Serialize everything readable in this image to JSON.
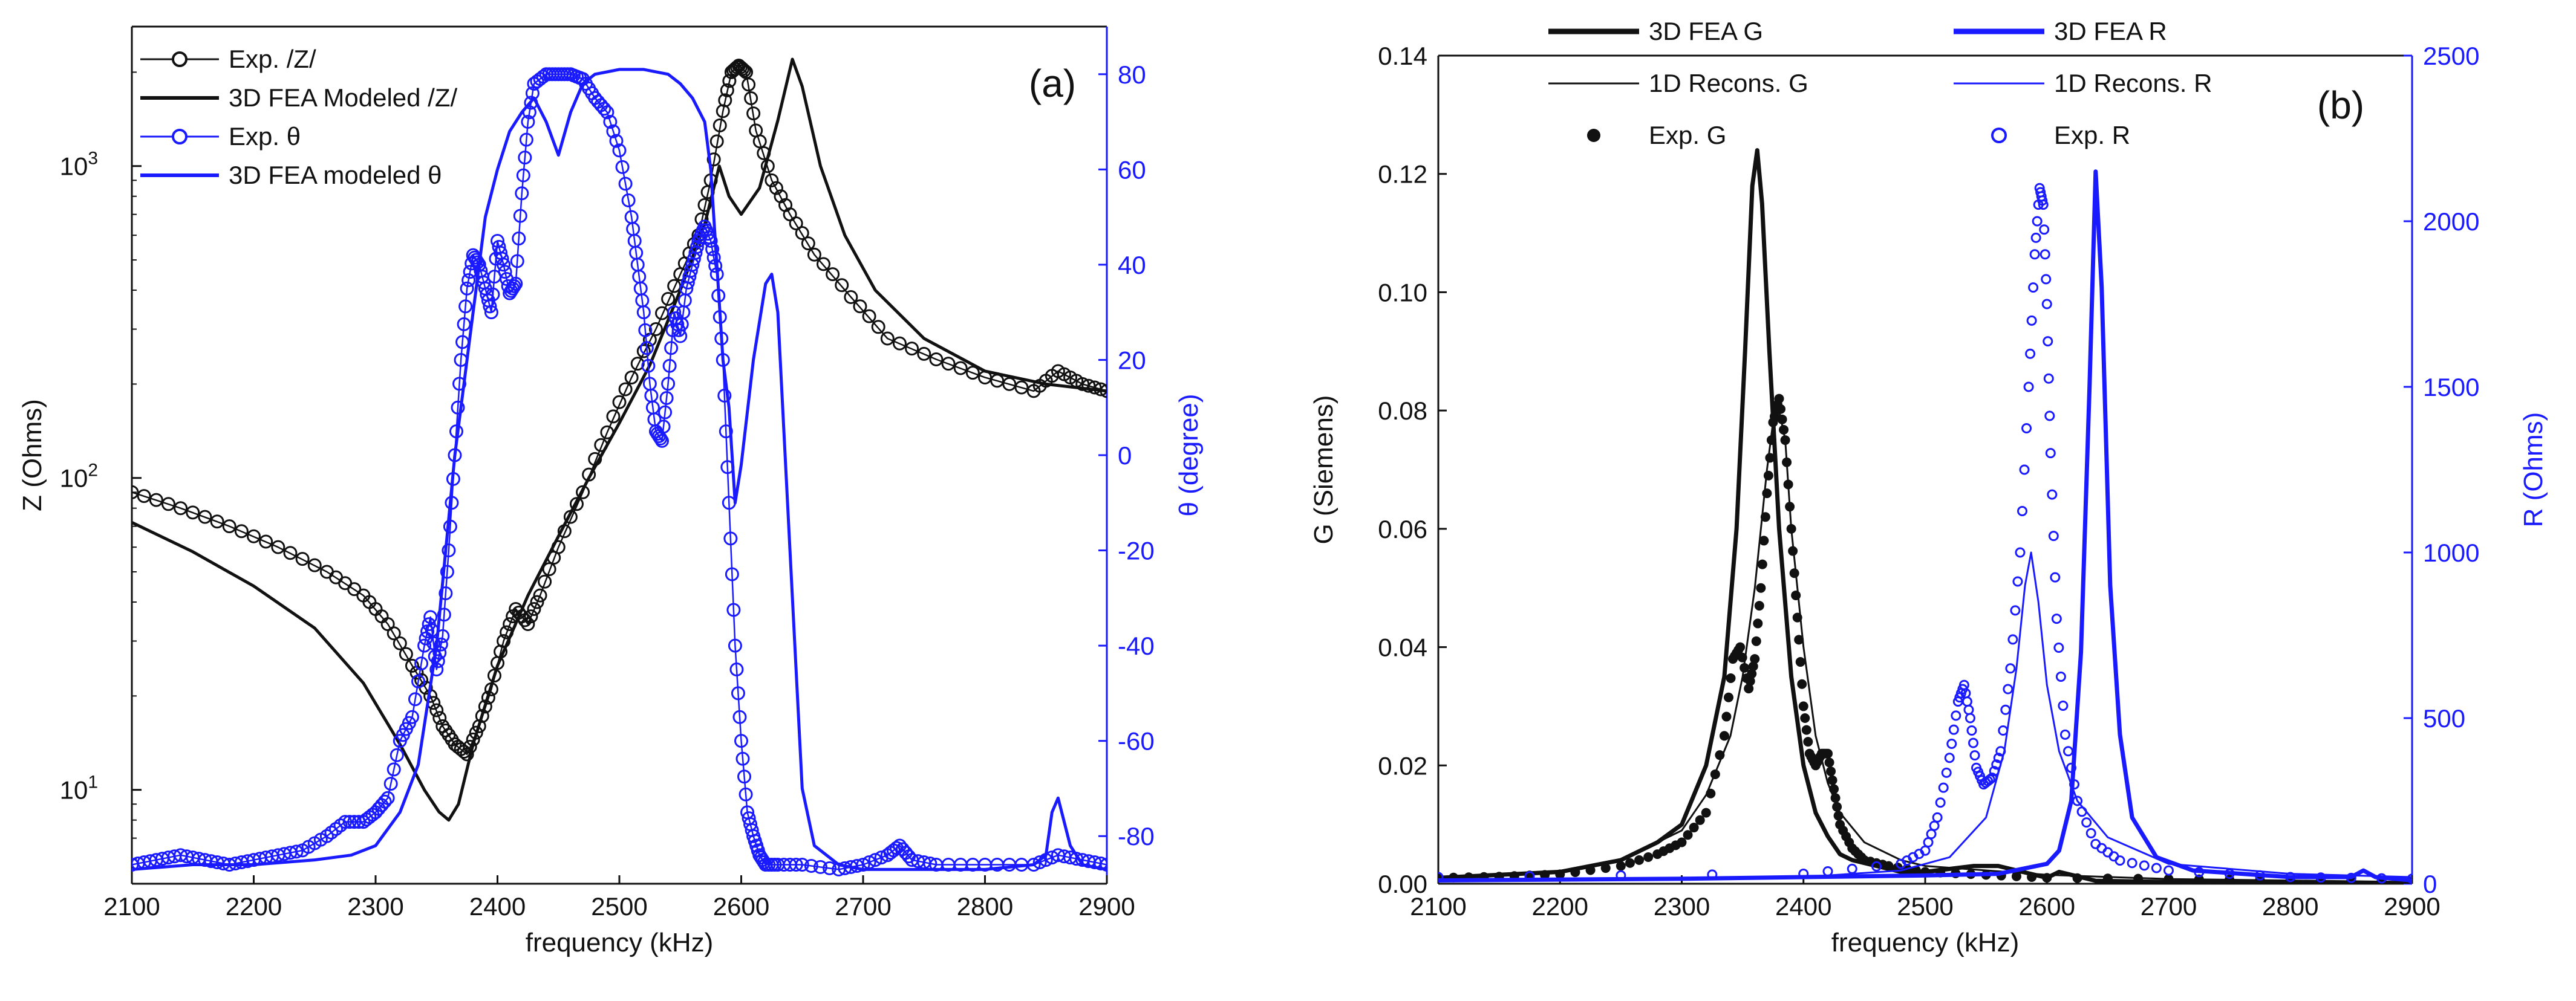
{
  "colors": {
    "black": "#111111",
    "blue": "#1a1aff"
  },
  "chart_data": [
    {
      "panel": "(a)",
      "type": "line",
      "xlabel": "frequency (kHz)",
      "ylabel_left": "Z (Ohms)",
      "ylabel_right": "θ (degree)",
      "xlim": [
        2100,
        2900
      ],
      "xticks": [
        2100,
        2200,
        2300,
        2400,
        2500,
        2600,
        2700,
        2800,
        2900
      ],
      "ylim_left": [
        5,
        2800
      ],
      "yscale_left": "log",
      "yticks_left": [
        {
          "v": 10,
          "base": "10",
          "exp": "1"
        },
        {
          "v": 100,
          "base": "10",
          "exp": "2"
        },
        {
          "v": 1000,
          "base": "10",
          "exp": "3"
        }
      ],
      "ylim_right": [
        -90,
        90
      ],
      "yticks_right": [
        -80,
        -60,
        -40,
        -20,
        0,
        20,
        40,
        60,
        80
      ],
      "legend_position": "top-left",
      "series": [
        {
          "name": "Exp. /Z/",
          "axis": "left",
          "color": "#111111",
          "style": "circles-line",
          "x": [
            2100,
            2140,
            2180,
            2220,
            2260,
            2290,
            2310,
            2330,
            2345,
            2355,
            2365,
            2375,
            2385,
            2395,
            2405,
            2415,
            2425,
            2435,
            2450,
            2470,
            2490,
            2510,
            2530,
            2550,
            2565,
            2575,
            2585,
            2592,
            2598,
            2604,
            2612,
            2625,
            2640,
            2660,
            2690,
            2720,
            2760,
            2800,
            2840,
            2860,
            2880,
            2900
          ],
          "y": [
            90,
            80,
            70,
            60,
            50,
            42,
            34,
            25,
            20,
            16,
            14,
            13,
            16,
            21,
            30,
            38,
            34,
            42,
            60,
            90,
            140,
            210,
            300,
            450,
            600,
            900,
            1500,
            2000,
            2100,
            2000,
            1300,
            900,
            700,
            520,
            380,
            280,
            240,
            210,
            190,
            220,
            200,
            190
          ]
        },
        {
          "name": "3D FEA Modeled /Z/",
          "axis": "left",
          "color": "#111111",
          "style": "line",
          "x": [
            2100,
            2150,
            2200,
            2250,
            2290,
            2320,
            2340,
            2352,
            2360,
            2368,
            2380,
            2400,
            2425,
            2450,
            2475,
            2500,
            2525,
            2550,
            2570,
            2582,
            2590,
            2600,
            2615,
            2630,
            2642,
            2650,
            2665,
            2685,
            2710,
            2750,
            2800,
            2850,
            2900
          ],
          "y": [
            72,
            58,
            45,
            33,
            22,
            14,
            10,
            8.5,
            8,
            9,
            14,
            25,
            42,
            65,
            100,
            150,
            230,
            400,
            650,
            1000,
            800,
            700,
            850,
            1400,
            2200,
            1800,
            1000,
            600,
            400,
            280,
            220,
            200,
            190
          ]
        },
        {
          "name": "Exp. θ",
          "axis": "right",
          "color": "#1a1aff",
          "style": "circles-line",
          "x": [
            2100,
            2120,
            2140,
            2160,
            2180,
            2200,
            2220,
            2240,
            2260,
            2275,
            2290,
            2300,
            2310,
            2320,
            2330,
            2340,
            2345,
            2350,
            2355,
            2360,
            2365,
            2370,
            2375,
            2380,
            2385,
            2390,
            2395,
            2400,
            2405,
            2410,
            2415,
            2420,
            2425,
            2430,
            2440,
            2450,
            2460,
            2470,
            2480,
            2490,
            2500,
            2510,
            2515,
            2520,
            2525,
            2530,
            2535,
            2540,
            2545,
            2550,
            2555,
            2560,
            2565,
            2570,
            2575,
            2580,
            2585,
            2590,
            2595,
            2600,
            2605,
            2610,
            2615,
            2620,
            2630,
            2650,
            2680,
            2700,
            2720,
            2730,
            2740,
            2760,
            2800,
            2840,
            2860,
            2880,
            2900
          ],
          "y": [
            -86,
            -85,
            -84,
            -85,
            -86,
            -85,
            -84,
            -83,
            -80,
            -77,
            -77,
            -75,
            -72,
            -60,
            -55,
            -40,
            -34,
            -45,
            -38,
            -20,
            0,
            20,
            35,
            42,
            40,
            35,
            30,
            45,
            40,
            34,
            36,
            55,
            70,
            78,
            80,
            80,
            80,
            79,
            75,
            72,
            64,
            50,
            40,
            30,
            15,
            5,
            3,
            15,
            30,
            25,
            35,
            40,
            45,
            48,
            45,
            38,
            20,
            -10,
            -40,
            -60,
            -75,
            -80,
            -84,
            -86,
            -86,
            -86,
            -87,
            -86,
            -84,
            -82,
            -85,
            -86,
            -86,
            -86,
            -84,
            -85,
            -86
          ]
        },
        {
          "name": "3D FEA modeled θ",
          "axis": "right",
          "color": "#1a1aff",
          "style": "line",
          "x": [
            2100,
            2150,
            2200,
            2250,
            2280,
            2300,
            2320,
            2335,
            2350,
            2365,
            2380,
            2390,
            2400,
            2410,
            2420,
            2430,
            2440,
            2450,
            2460,
            2470,
            2480,
            2500,
            2520,
            2540,
            2550,
            2560,
            2570,
            2575,
            2580,
            2585,
            2590,
            2595,
            2600,
            2610,
            2620,
            2625,
            2630,
            2640,
            2650,
            2660,
            2680,
            2700,
            2750,
            2800,
            2840,
            2850,
            2855,
            2860,
            2870,
            2880,
            2900
          ],
          "y": [
            -87,
            -86,
            -86,
            -85,
            -84,
            -82,
            -75,
            -65,
            -40,
            0,
            30,
            50,
            60,
            68,
            72,
            75,
            70,
            63,
            72,
            78,
            80,
            81,
            81,
            80,
            78,
            75,
            70,
            60,
            40,
            20,
            10,
            -10,
            -2,
            20,
            36,
            38,
            30,
            -20,
            -70,
            -82,
            -86,
            -87,
            -87,
            -87,
            -86,
            -84,
            -75,
            -72,
            -82,
            -86,
            -87
          ]
        }
      ]
    },
    {
      "panel": "(b)",
      "type": "line",
      "xlabel": "frequency (kHz)",
      "ylabel_left": "G (Siemens)",
      "ylabel_right": "R (Ohms)",
      "xlim": [
        2100,
        2900
      ],
      "xticks": [
        2100,
        2200,
        2300,
        2400,
        2500,
        2600,
        2700,
        2800,
        2900
      ],
      "ylim_left": [
        0,
        0.14
      ],
      "yticks_left": [
        "0.00",
        "0.02",
        "0.04",
        "0.06",
        "0.08",
        "0.10",
        "0.12",
        "0.14"
      ],
      "ylim_right": [
        0,
        2500
      ],
      "yticks_right": [
        0,
        500,
        1000,
        1500,
        2000,
        2500
      ],
      "legend_position": "top",
      "series": [
        {
          "name": "3D FEA G",
          "axis": "left",
          "color": "#111111",
          "style": "thick-line",
          "x": [
            2100,
            2150,
            2200,
            2250,
            2280,
            2300,
            2320,
            2335,
            2345,
            2352,
            2358,
            2362,
            2366,
            2372,
            2380,
            2390,
            2400,
            2410,
            2420,
            2430,
            2440,
            2460,
            2480,
            2500,
            2540,
            2560,
            2580,
            2600,
            2610,
            2640,
            2700,
            2900
          ],
          "y": [
            0.001,
            0.0015,
            0.002,
            0.004,
            0.007,
            0.01,
            0.02,
            0.035,
            0.06,
            0.09,
            0.118,
            0.124,
            0.115,
            0.09,
            0.06,
            0.035,
            0.02,
            0.012,
            0.008,
            0.005,
            0.004,
            0.003,
            0.002,
            0.002,
            0.003,
            0.003,
            0.002,
            0.001,
            0.002,
            0.0005,
            0.0003,
            0.0001
          ]
        },
        {
          "name": "1D Recons. G",
          "axis": "left",
          "color": "#111111",
          "style": "thin-line",
          "x": [
            2100,
            2200,
            2250,
            2280,
            2300,
            2320,
            2340,
            2350,
            2360,
            2370,
            2375,
            2380,
            2385,
            2390,
            2400,
            2410,
            2420,
            2430,
            2450,
            2480,
            2500,
            2600,
            2700,
            2900
          ],
          "y": [
            0.001,
            0.002,
            0.004,
            0.007,
            0.009,
            0.015,
            0.025,
            0.035,
            0.05,
            0.07,
            0.078,
            0.08,
            0.075,
            0.06,
            0.04,
            0.025,
            0.017,
            0.012,
            0.007,
            0.004,
            0.003,
            0.0015,
            0.0008,
            0.0003
          ]
        },
        {
          "name": "Exp. G",
          "axis": "left",
          "color": "#111111",
          "style": "filled-dots",
          "x": [
            2100,
            2150,
            2200,
            2250,
            2280,
            2300,
            2320,
            2335,
            2342,
            2348,
            2355,
            2360,
            2365,
            2370,
            2375,
            2380,
            2385,
            2390,
            2395,
            2400,
            2405,
            2410,
            2415,
            2420,
            2425,
            2430,
            2440,
            2450,
            2470,
            2500,
            2550,
            2600,
            2700,
            2800,
            2900
          ],
          "y": [
            0.001,
            0.0012,
            0.0016,
            0.003,
            0.005,
            0.007,
            0.012,
            0.025,
            0.038,
            0.04,
            0.033,
            0.038,
            0.05,
            0.066,
            0.078,
            0.082,
            0.075,
            0.06,
            0.045,
            0.03,
            0.022,
            0.02,
            0.022,
            0.022,
            0.016,
            0.01,
            0.006,
            0.004,
            0.003,
            0.002,
            0.0015,
            0.001,
            0.0008,
            0.0006,
            0.0005
          ]
        },
        {
          "name": "3D FEA R",
          "axis": "right",
          "color": "#1a1aff",
          "style": "thick-line",
          "x": [
            2100,
            2300,
            2400,
            2500,
            2560,
            2600,
            2610,
            2620,
            2628,
            2635,
            2640,
            2645,
            2652,
            2660,
            2670,
            2690,
            2720,
            2800,
            2850,
            2860,
            2870,
            2900
          ],
          "y": [
            10,
            15,
            20,
            25,
            30,
            60,
            100,
            250,
            700,
            1500,
            2150,
            1800,
            900,
            450,
            200,
            80,
            40,
            20,
            20,
            40,
            20,
            10
          ]
        },
        {
          "name": "1D Recons. R",
          "axis": "right",
          "color": "#1a1aff",
          "style": "thin-line",
          "x": [
            2100,
            2400,
            2480,
            2520,
            2550,
            2565,
            2575,
            2582,
            2587,
            2593,
            2600,
            2610,
            2625,
            2650,
            2700,
            2800,
            2900
          ],
          "y": [
            10,
            20,
            40,
            80,
            200,
            400,
            650,
            900,
            1000,
            850,
            600,
            400,
            250,
            140,
            60,
            30,
            20
          ]
        },
        {
          "name": "Exp. R",
          "axis": "right",
          "color": "#1a1aff",
          "style": "open-circles",
          "x": [
            2100,
            2400,
            2480,
            2500,
            2510,
            2520,
            2527,
            2532,
            2537,
            2542,
            2548,
            2555,
            2562,
            2570,
            2578,
            2585,
            2590,
            2594,
            2597,
            2600,
            2603,
            2608,
            2615,
            2625,
            2640,
            2660,
            2700,
            2800,
            2900
          ],
          "y": [
            20,
            30,
            60,
            100,
            200,
            380,
            550,
            600,
            500,
            350,
            300,
            320,
            400,
            650,
            1000,
            1500,
            1900,
            2100,
            2050,
            1750,
            1300,
            800,
            450,
            250,
            120,
            70,
            40,
            20,
            15
          ]
        }
      ]
    }
  ]
}
